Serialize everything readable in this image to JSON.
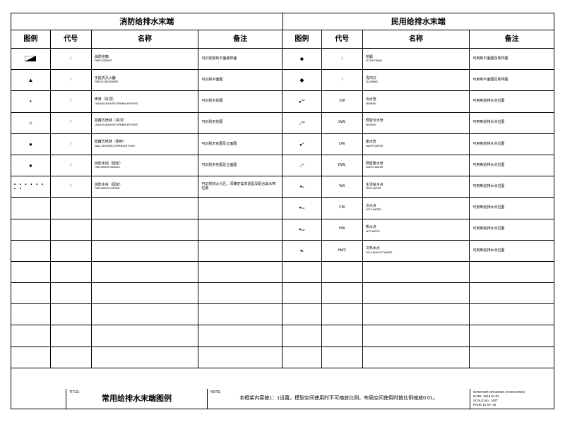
{
  "header_left": "消防给排水末端",
  "header_right": "民用给排水末端",
  "cols": {
    "legend": "图例",
    "code": "代号",
    "name": "名称",
    "note": "备注"
  },
  "left": [
    {
      "sym": "▰",
      "code": "/",
      "name_cn": "消防栓箱",
      "name_en": "FIRE HYDRANT",
      "note": "可识别放有平面装饰面"
    },
    {
      "sym": "▲",
      "code": "/",
      "name_cn": "手提式灭火器",
      "name_en": "FIRE EXTINGUISHER",
      "note": "可识别平面图"
    },
    {
      "sym": "•",
      "code": "/",
      "name_cn": "喷淋（吊顶）",
      "name_en": "CEILING MOUNTED SPRINKLER POINT",
      "note": "可识别天花图"
    },
    {
      "sym": "○",
      "code": "/",
      "name_cn": "隐藏式喷淋（吊顶）",
      "name_en": "CEILING MOUNTED SPRINKLER POINT",
      "note": "可识别天花图"
    },
    {
      "sym": "●",
      "code": "/",
      "name_cn": "隐藏式喷淋（侧喷）",
      "name_en": "WALL MOUNTED SPRINKLER POINT",
      "note": "可识别天花图及立面图"
    },
    {
      "sym": "♠",
      "code": "/",
      "name_cn": "消防水炮（固定）",
      "name_en": "FIRE WATER CANNON",
      "note": "可识别天花图及立面图"
    },
    {
      "sym": "dots",
      "code": "/",
      "name_cn": "消防水帘（固定）",
      "name_en": "FIRE WATER CURTAIN",
      "note": "可识别较大分区，须确定需求造型及配合其水带位置"
    }
  ],
  "right": [
    {
      "sym": "■",
      "code": "/",
      "name_cn": "地漏",
      "name_en": "FLOOR DRAIN",
      "note": "可用到平面图及地坪图"
    },
    {
      "sym": "◆",
      "code": "/",
      "name_cn": "清扫口",
      "name_en": "CLEANING",
      "note": "可用到平面图及地坪图"
    },
    {
      "sym": "↑sw",
      "code": "SW",
      "name_cn": "污水管",
      "name_en": "SEWAGE",
      "note": "可用到给排水点位图"
    },
    {
      "sym": "↓sw",
      "code": "SWL",
      "name_cn": "预留污水管",
      "name_en": "SEWAGE",
      "note": "可用到给排水点位图"
    },
    {
      "sym": "↑w",
      "code": "DW",
      "name_cn": "废水管",
      "name_en": "WASTE WATER",
      "note": "可用到给排水点位图"
    },
    {
      "sym": "↓w",
      "code": "DWL",
      "name_cn": "预留废水管",
      "name_en": "WASTE WATER",
      "note": "可用到给排水点位图"
    },
    {
      "sym": "▸w",
      "code": "WS",
      "name_cn": "生活给水点",
      "name_en": "FEED WATER",
      "note": "可用到给排水点位图"
    },
    {
      "sym": "▸cw",
      "code": "CW",
      "name_cn": "冷水点",
      "name_en": "COLD WATER",
      "note": "可用到给排水点位图"
    },
    {
      "sym": "▸hw",
      "code": "HW",
      "name_cn": "热水点",
      "name_en": "HOT WATER",
      "note": "可用到给排水点位图"
    },
    {
      "sym": "▸▸",
      "code": "HWC",
      "name_cn": "冷热水点",
      "name_en": "COLD AND HOT WATER",
      "note": "可用到给排水点位图"
    }
  ],
  "total_rows": 15,
  "titleblock": {
    "blank_w": 78,
    "title_label": "TITLE:",
    "title": "常用给排水末端图例",
    "title_w": 200,
    "note_label": "NOTE:",
    "note": "本框架内容按1：1设置，模型空间使用时不可缩放比例，布局空间使用时按比例缩放0.01。",
    "note_w": 372,
    "info": {
      "l1": "INTERIOR DRAWING STANDARDS",
      "l2": "DATE: 2016.01.01",
      "l3": "SCALE No.: NOT",
      "l4": "PAGE 12 OF 18"
    }
  }
}
